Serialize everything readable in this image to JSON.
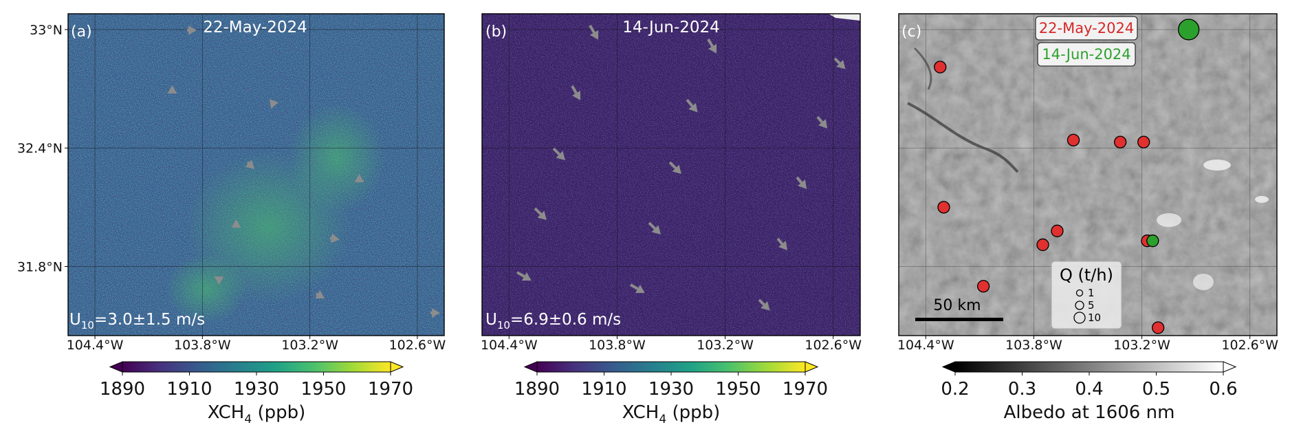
{
  "colors": {
    "viridis_stops": [
      "#440154",
      "#46327e",
      "#365c8d",
      "#277f8e",
      "#1fa187",
      "#4ac16d",
      "#a0da39",
      "#fde725"
    ],
    "gray_stops": [
      "#000000",
      "#ffffff"
    ],
    "dot_may": "#e03030",
    "dot_jun": "#2ca02c",
    "label_may": "#d62728",
    "label_jun": "#2ca02c",
    "arrow": "#8c8c8c"
  },
  "axes": {
    "x_ticks": [
      "104.4°W",
      "103.8°W",
      "103.2°W",
      "102.6°W"
    ],
    "y_ticks": [
      "33°N",
      "32.4°N",
      "31.8°N"
    ]
  },
  "panels": [
    {
      "letter": "(a)",
      "title": "22-May-2024",
      "wind_label": "=3.0±1.5 m/s",
      "colorbar": {
        "ticks": [
          "1890",
          "1910",
          "1930",
          "1950",
          "1970"
        ],
        "label": "XCH",
        "label_sub": "4",
        "label_unit": " (ppb)"
      }
    },
    {
      "letter": "(b)",
      "title": "14-Jun-2024",
      "wind_label": "=6.9±0.6 m/s",
      "colorbar": {
        "ticks": [
          "1890",
          "1910",
          "1930",
          "1950",
          "1970"
        ],
        "label": "XCH",
        "label_sub": "4",
        "label_unit": " (ppb)"
      }
    },
    {
      "letter": "(c)",
      "legend_may": "22-May-2024",
      "legend_jun": "14-Jun-2024",
      "scale_label": "50 km",
      "q_title": "Q (t/h)",
      "q_values": [
        "1",
        "5",
        "10"
      ],
      "colorbar": {
        "ticks": [
          "0.2",
          "0.3",
          "0.4",
          "0.5",
          "0.6"
        ],
        "label": "Albedo at 1606 nm"
      }
    }
  ],
  "wind_symbol": "U",
  "wind_sub": "10",
  "sources_may": [
    {
      "lon": -104.32,
      "lat": 32.81,
      "q": 1
    },
    {
      "lon": -103.58,
      "lat": 32.44,
      "q": 1
    },
    {
      "lon": -103.32,
      "lat": 32.43,
      "q": 1
    },
    {
      "lon": -103.19,
      "lat": 32.43,
      "q": 1
    },
    {
      "lon": -104.3,
      "lat": 32.1,
      "q": 1
    },
    {
      "lon": -103.67,
      "lat": 31.98,
      "q": 1
    },
    {
      "lon": -103.75,
      "lat": 31.91,
      "q": 1
    },
    {
      "lon": -103.17,
      "lat": 31.93,
      "q": 1
    },
    {
      "lon": -104.08,
      "lat": 31.7,
      "q": 1
    },
    {
      "lon": -103.11,
      "lat": 31.49,
      "q": 1
    }
  ],
  "sources_jun": [
    {
      "lon": -102.94,
      "lat": 33.0,
      "q": 10
    },
    {
      "lon": -103.14,
      "lat": 31.93,
      "q": 1
    }
  ]
}
